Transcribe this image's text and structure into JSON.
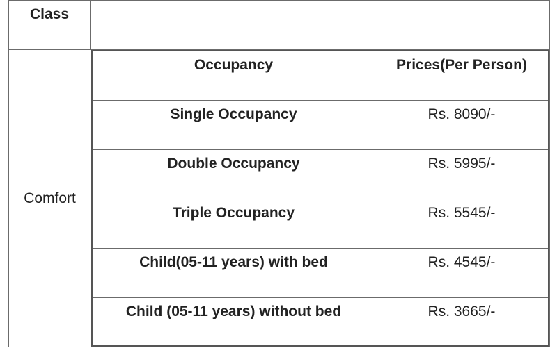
{
  "table": {
    "class_header": "Class",
    "class_value": "Comfort",
    "column_headers": {
      "occupancy": "Occupancy",
      "price": "Prices(Per Person)"
    },
    "rows": [
      {
        "occupancy": "Single Occupancy",
        "price": "Rs. 8090/-"
      },
      {
        "occupancy": "Double Occupancy",
        "price": "Rs. 5995/-"
      },
      {
        "occupancy": "Triple Occupancy",
        "price": "Rs. 5545/-"
      },
      {
        "occupancy": "Child(05-11 years) with bed",
        "price": "Rs. 4545/-"
      },
      {
        "occupancy": "Child (05-11 years) without bed",
        "price": "Rs. 3665/-"
      }
    ]
  }
}
